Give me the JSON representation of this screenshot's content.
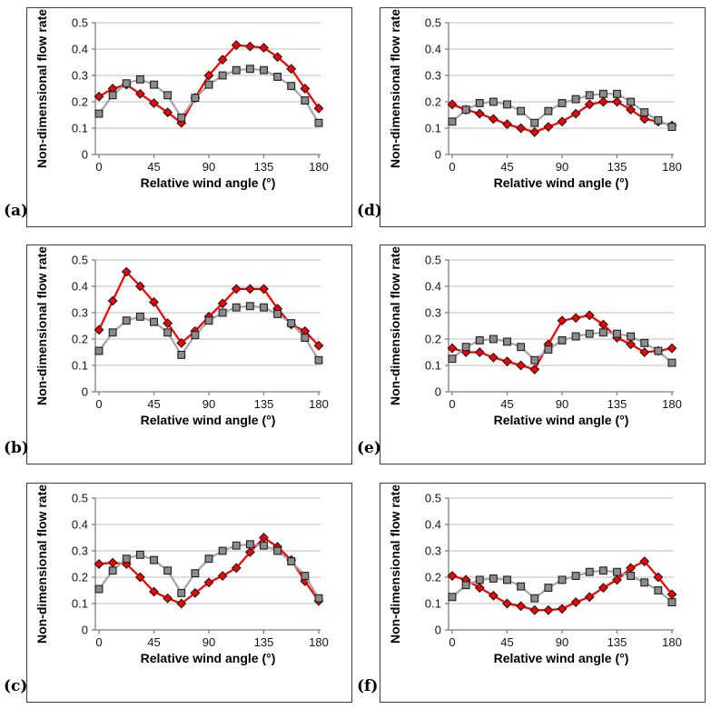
{
  "palette": {
    "red_line": "#FE0000",
    "red_fill": "#F40000",
    "gray_line": "#A6A6A6",
    "gray_fill": "#8C8C8C",
    "marker_outline": "#1F1F1F",
    "gridline": "#BFBFBF",
    "axis": "#7F7F7F",
    "text": "#000000",
    "panel_border": "#3F3F3F"
  },
  "chart_data": [
    {
      "panel_label": "(a)",
      "type": "line",
      "title": "",
      "xlabel": "Relative wind angle (°)",
      "ylabel": "Non-dimensional flow rate",
      "xlim": [
        0,
        180
      ],
      "ylim": [
        0,
        0.5
      ],
      "xticks": [
        0,
        45,
        90,
        135,
        180
      ],
      "yticks": [
        0,
        0.1,
        0.2,
        0.3,
        0.4,
        0.5
      ],
      "grid": "horizontal",
      "legend": "none",
      "x": [
        0,
        11.25,
        22.5,
        33.75,
        45,
        56.25,
        67.5,
        78.75,
        90,
        101.25,
        112.5,
        123.75,
        135,
        146.25,
        157.5,
        168.75,
        180
      ],
      "series": [
        {
          "name": "red-diamond-series",
          "marker": "diamond",
          "line_color": "#FE0000",
          "fill_color": "#F40000",
          "values": [
            0.22,
            0.25,
            0.265,
            0.23,
            0.195,
            0.16,
            0.12,
            0.215,
            0.3,
            0.36,
            0.415,
            0.41,
            0.405,
            0.37,
            0.325,
            0.25,
            0.175
          ]
        },
        {
          "name": "gray-square-series",
          "marker": "square",
          "line_color": "#A6A6A6",
          "fill_color": "#8C8C8C",
          "values": [
            0.155,
            0.225,
            0.27,
            0.285,
            0.265,
            0.225,
            0.14,
            0.215,
            0.265,
            0.3,
            0.32,
            0.325,
            0.32,
            0.295,
            0.26,
            0.205,
            0.12
          ]
        }
      ]
    },
    {
      "panel_label": "(b)",
      "type": "line",
      "title": "",
      "xlabel": "Relative wind angle (°)",
      "ylabel": "Non-dimensional flow rate",
      "xlim": [
        0,
        180
      ],
      "ylim": [
        0,
        0.5
      ],
      "xticks": [
        0,
        45,
        90,
        135,
        180
      ],
      "yticks": [
        0,
        0.1,
        0.2,
        0.3,
        0.4,
        0.5
      ],
      "grid": "horizontal",
      "legend": "none",
      "x": [
        0,
        11.25,
        22.5,
        33.75,
        45,
        56.25,
        67.5,
        78.75,
        90,
        101.25,
        112.5,
        123.75,
        135,
        146.25,
        157.5,
        168.75,
        180
      ],
      "series": [
        {
          "name": "red-diamond-series",
          "marker": "diamond",
          "line_color": "#FE0000",
          "fill_color": "#F40000",
          "values": [
            0.235,
            0.345,
            0.455,
            0.4,
            0.34,
            0.26,
            0.185,
            0.23,
            0.285,
            0.335,
            0.39,
            0.39,
            0.39,
            0.315,
            0.255,
            0.23,
            0.175
          ]
        },
        {
          "name": "gray-square-series",
          "marker": "square",
          "line_color": "#A6A6A6",
          "fill_color": "#8C8C8C",
          "values": [
            0.155,
            0.225,
            0.27,
            0.285,
            0.265,
            0.225,
            0.14,
            0.215,
            0.27,
            0.3,
            0.32,
            0.325,
            0.32,
            0.295,
            0.26,
            0.205,
            0.12
          ]
        }
      ]
    },
    {
      "panel_label": "(c)",
      "type": "line",
      "title": "",
      "xlabel": "Relative wind angle (°)",
      "ylabel": "Non-dimensional flow rate",
      "xlim": [
        0,
        180
      ],
      "ylim": [
        0,
        0.5
      ],
      "xticks": [
        0,
        45,
        90,
        135,
        180
      ],
      "yticks": [
        0,
        0.1,
        0.2,
        0.3,
        0.4,
        0.5
      ],
      "grid": "horizontal",
      "legend": "none",
      "x": [
        0,
        11.25,
        22.5,
        33.75,
        45,
        56.25,
        67.5,
        78.75,
        90,
        101.25,
        112.5,
        123.75,
        135,
        146.25,
        157.5,
        168.75,
        180
      ],
      "series": [
        {
          "name": "red-diamond-series",
          "marker": "diamond",
          "line_color": "#FE0000",
          "fill_color": "#F40000",
          "values": [
            0.25,
            0.255,
            0.25,
            0.2,
            0.145,
            0.12,
            0.1,
            0.14,
            0.18,
            0.205,
            0.235,
            0.295,
            0.35,
            0.315,
            0.265,
            0.185,
            0.11
          ]
        },
        {
          "name": "gray-square-series",
          "marker": "square",
          "line_color": "#A6A6A6",
          "fill_color": "#8C8C8C",
          "values": [
            0.155,
            0.225,
            0.27,
            0.285,
            0.265,
            0.225,
            0.14,
            0.215,
            0.27,
            0.3,
            0.32,
            0.325,
            0.32,
            0.3,
            0.26,
            0.205,
            0.12
          ]
        }
      ]
    },
    {
      "panel_label": "(d)",
      "type": "line",
      "title": "",
      "xlabel": "Relative wind angle (°)",
      "ylabel": "Non-dimensional flow rate",
      "xlim": [
        0,
        180
      ],
      "ylim": [
        0,
        0.5
      ],
      "xticks": [
        0,
        45,
        90,
        135,
        180
      ],
      "yticks": [
        0,
        0.1,
        0.2,
        0.3,
        0.4,
        0.5
      ],
      "grid": "horizontal",
      "legend": "none",
      "x": [
        0,
        11.25,
        22.5,
        33.75,
        45,
        56.25,
        67.5,
        78.75,
        90,
        101.25,
        112.5,
        123.75,
        135,
        146.25,
        157.5,
        168.75,
        180
      ],
      "series": [
        {
          "name": "red-diamond-series",
          "marker": "diamond",
          "line_color": "#FE0000",
          "fill_color": "#F40000",
          "values": [
            0.19,
            0.17,
            0.155,
            0.135,
            0.115,
            0.1,
            0.085,
            0.105,
            0.125,
            0.155,
            0.19,
            0.2,
            0.2,
            0.17,
            0.135,
            0.125,
            0.11
          ]
        },
        {
          "name": "gray-square-series",
          "marker": "square",
          "line_color": "#A6A6A6",
          "fill_color": "#8C8C8C",
          "values": [
            0.125,
            0.17,
            0.195,
            0.2,
            0.19,
            0.165,
            0.12,
            0.165,
            0.195,
            0.21,
            0.225,
            0.23,
            0.23,
            0.2,
            0.16,
            0.13,
            0.105
          ]
        }
      ]
    },
    {
      "panel_label": "(e)",
      "type": "line",
      "title": "",
      "xlabel": "Relative wind angle (°)",
      "ylabel": "Non-dimensional flow rate",
      "xlim": [
        0,
        180
      ],
      "ylim": [
        0,
        0.5
      ],
      "xticks": [
        0,
        45,
        90,
        135,
        180
      ],
      "yticks": [
        0,
        0.1,
        0.2,
        0.3,
        0.4,
        0.5
      ],
      "grid": "horizontal",
      "legend": "none",
      "x": [
        0,
        11.25,
        22.5,
        33.75,
        45,
        56.25,
        67.5,
        78.75,
        90,
        101.25,
        112.5,
        123.75,
        135,
        146.25,
        157.5,
        168.75,
        180
      ],
      "series": [
        {
          "name": "red-diamond-series",
          "marker": "diamond",
          "line_color": "#FE0000",
          "fill_color": "#F40000",
          "values": [
            0.165,
            0.15,
            0.15,
            0.13,
            0.115,
            0.1,
            0.085,
            0.18,
            0.27,
            0.28,
            0.29,
            0.255,
            0.205,
            0.18,
            0.15,
            0.155,
            0.165
          ]
        },
        {
          "name": "gray-square-series",
          "marker": "square",
          "line_color": "#A6A6A6",
          "fill_color": "#8C8C8C",
          "values": [
            0.125,
            0.17,
            0.195,
            0.2,
            0.19,
            0.17,
            0.12,
            0.16,
            0.195,
            0.21,
            0.22,
            0.225,
            0.22,
            0.21,
            0.185,
            0.155,
            0.11
          ]
        }
      ]
    },
    {
      "panel_label": "(f)",
      "type": "line",
      "title": "",
      "xlabel": "Relative wind angle (°)",
      "ylabel": "Non-dimensional flow rate",
      "xlim": [
        0,
        180
      ],
      "ylim": [
        0,
        0.5
      ],
      "xticks": [
        0,
        45,
        90,
        135,
        180
      ],
      "yticks": [
        0,
        0.1,
        0.2,
        0.3,
        0.4,
        0.5
      ],
      "grid": "horizontal",
      "legend": "none",
      "x": [
        0,
        11.25,
        22.5,
        33.75,
        45,
        56.25,
        67.5,
        78.75,
        90,
        101.25,
        112.5,
        123.75,
        135,
        146.25,
        157.5,
        168.75,
        180
      ],
      "series": [
        {
          "name": "red-diamond-series",
          "marker": "diamond",
          "line_color": "#FE0000",
          "fill_color": "#F40000",
          "values": [
            0.205,
            0.19,
            0.16,
            0.13,
            0.1,
            0.09,
            0.075,
            0.075,
            0.08,
            0.105,
            0.125,
            0.16,
            0.19,
            0.235,
            0.26,
            0.2,
            0.135
          ]
        },
        {
          "name": "gray-square-series",
          "marker": "square",
          "line_color": "#A6A6A6",
          "fill_color": "#8C8C8C",
          "values": [
            0.125,
            0.17,
            0.19,
            0.195,
            0.19,
            0.165,
            0.12,
            0.16,
            0.19,
            0.205,
            0.22,
            0.225,
            0.22,
            0.205,
            0.18,
            0.15,
            0.105
          ]
        }
      ]
    }
  ]
}
